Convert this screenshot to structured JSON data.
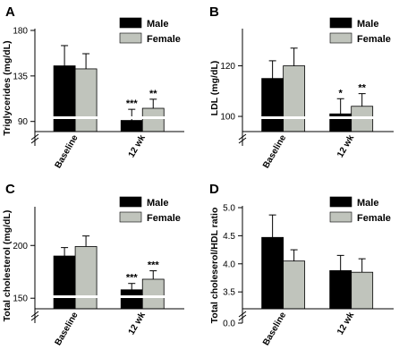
{
  "colors": {
    "male": "#000000",
    "female": "#c0c4bc",
    "axis": "#000000",
    "break": "#ffffff"
  },
  "chart_data": [
    {
      "panel": "A",
      "type": "bar",
      "ylabel": "Triglycerides (mg/dL)",
      "categories": [
        "Baseline",
        "12 wk"
      ],
      "yticks": [
        90,
        135,
        180
      ],
      "ytick_labels": [
        "90",
        "135",
        "180"
      ],
      "ylim": [
        80,
        180
      ],
      "axis_break": true,
      "series": [
        {
          "name": "Male",
          "values": [
            145,
            91
          ],
          "errors": [
            20,
            11
          ]
        },
        {
          "name": "Female",
          "values": [
            142,
            103
          ],
          "errors": [
            15,
            9
          ]
        }
      ],
      "significance": [
        {
          "category": 1,
          "series": 0,
          "label": "***"
        },
        {
          "category": 1,
          "series": 1,
          "label": "**"
        }
      ]
    },
    {
      "panel": "B",
      "type": "bar",
      "ylabel": "LDL (mg/dL)",
      "categories": [
        "Baseline",
        "12 wk"
      ],
      "yticks": [
        100,
        120
      ],
      "ytick_labels": [
        "100",
        "120"
      ],
      "ylim": [
        94,
        134
      ],
      "axis_break": true,
      "series": [
        {
          "name": "Male",
          "values": [
            115,
            101
          ],
          "errors": [
            7,
            6
          ]
        },
        {
          "name": "Female",
          "values": [
            120,
            104
          ],
          "errors": [
            7,
            5
          ]
        }
      ],
      "significance": [
        {
          "category": 1,
          "series": 0,
          "label": "*"
        },
        {
          "category": 1,
          "series": 1,
          "label": "**"
        }
      ]
    },
    {
      "panel": "C",
      "type": "bar",
      "ylabel": "Total cholesterol (mg/dL)",
      "categories": [
        "Baseline",
        "12 wk"
      ],
      "yticks": [
        150,
        200
      ],
      "ytick_labels": [
        "150",
        "200"
      ],
      "ylim": [
        140,
        235
      ],
      "axis_break": true,
      "series": [
        {
          "name": "Male",
          "values": [
            190,
            158
          ],
          "errors": [
            8,
            6
          ]
        },
        {
          "name": "Female",
          "values": [
            199,
            168
          ],
          "errors": [
            10,
            8
          ]
        }
      ],
      "significance": [
        {
          "category": 1,
          "series": 0,
          "label": "***"
        },
        {
          "category": 1,
          "series": 1,
          "label": "***"
        }
      ]
    },
    {
      "panel": "D",
      "type": "bar",
      "ylabel": "Total choleserol/HDL ratio",
      "categories": [
        "Baseline",
        "12 wk"
      ],
      "yticks": [
        0.0,
        3.5,
        4.0,
        4.5,
        5.0
      ],
      "ytick_labels": [
        "0.0",
        "3.5",
        "4.0",
        "4.5",
        "5.0"
      ],
      "ylim": [
        3.2,
        5.0
      ],
      "axis_break": true,
      "series": [
        {
          "name": "Male",
          "values": [
            4.47,
            3.88
          ],
          "errors": [
            0.4,
            0.27
          ]
        },
        {
          "name": "Female",
          "values": [
            4.05,
            3.85
          ],
          "errors": [
            0.2,
            0.24
          ]
        }
      ],
      "significance": []
    }
  ]
}
